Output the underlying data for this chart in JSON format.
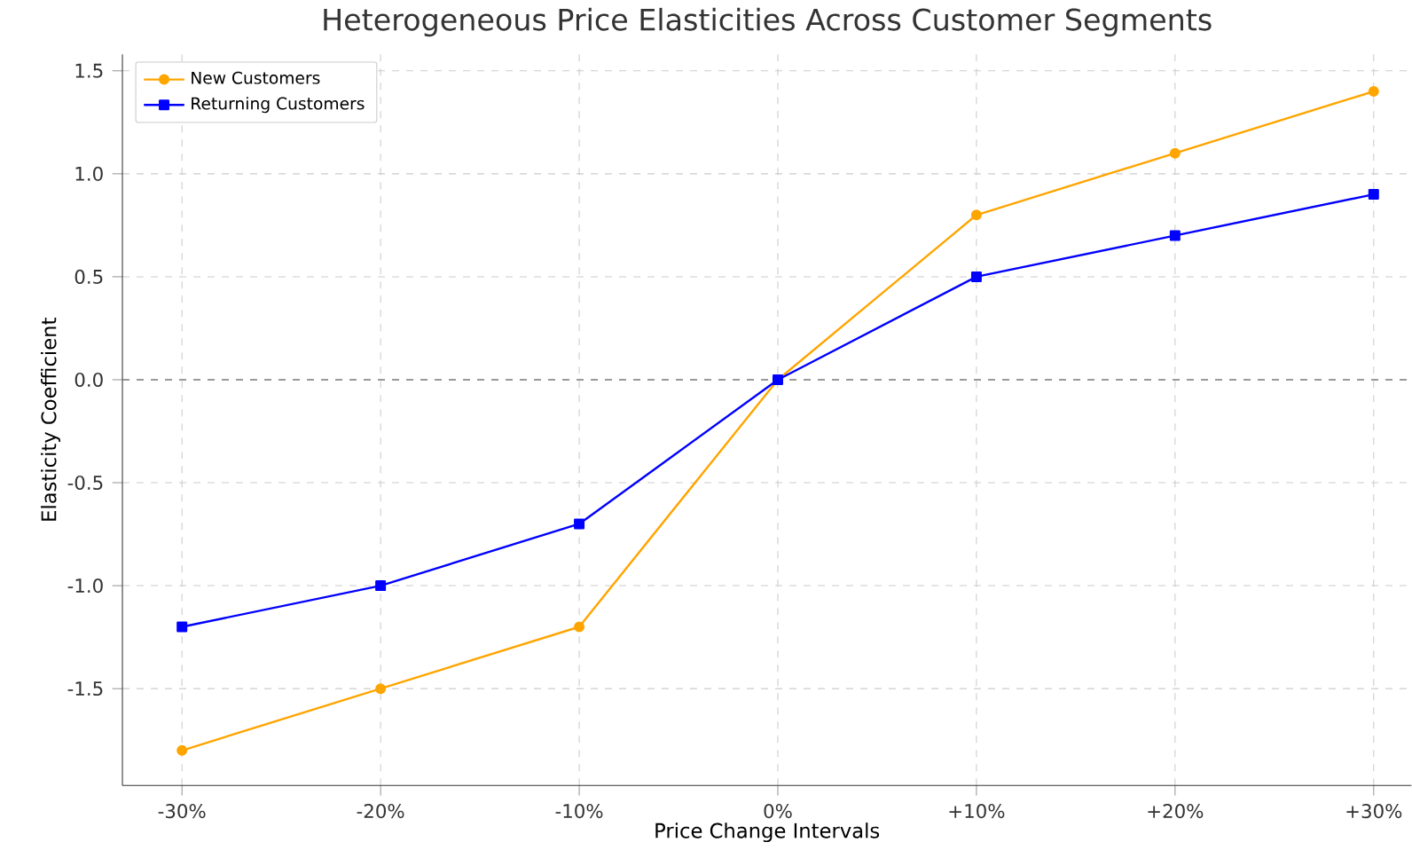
{
  "chart_data": {
    "type": "line",
    "title": "Heterogeneous Price Elasticities Across Customer Segments",
    "xlabel": "Price Change Intervals",
    "ylabel": "Elasticity Coefficient",
    "categories": [
      "-30%",
      "-20%",
      "-10%",
      "0%",
      "+10%",
      "+20%",
      "+30%"
    ],
    "series": [
      {
        "name": "New Customers",
        "color": "#ffa500",
        "marker": "circle",
        "values": [
          -1.8,
          -1.5,
          -1.2,
          0,
          0.8,
          1.1,
          1.4
        ]
      },
      {
        "name": "Returning Customers",
        "color": "#0000ff",
        "marker": "square",
        "values": [
          -1.2,
          -1.0,
          -0.7,
          0,
          0.5,
          0.7,
          0.9
        ]
      }
    ],
    "ylim": [
      -1.97,
      1.58
    ],
    "yticks": [
      -1.5,
      {
        "value": -1.0,
        "label": "-1.0"
      },
      -0.5,
      {
        "value": 0,
        "label": "0.0"
      },
      0.5,
      {
        "value": 1.0,
        "label": "1.0"
      },
      1.5
    ],
    "ref_lines": [
      {
        "axis": "y",
        "value": 0,
        "color": "#808080",
        "line_style": "dashed"
      }
    ],
    "grid": true,
    "legend": "top left",
    "line_style": "solid"
  }
}
